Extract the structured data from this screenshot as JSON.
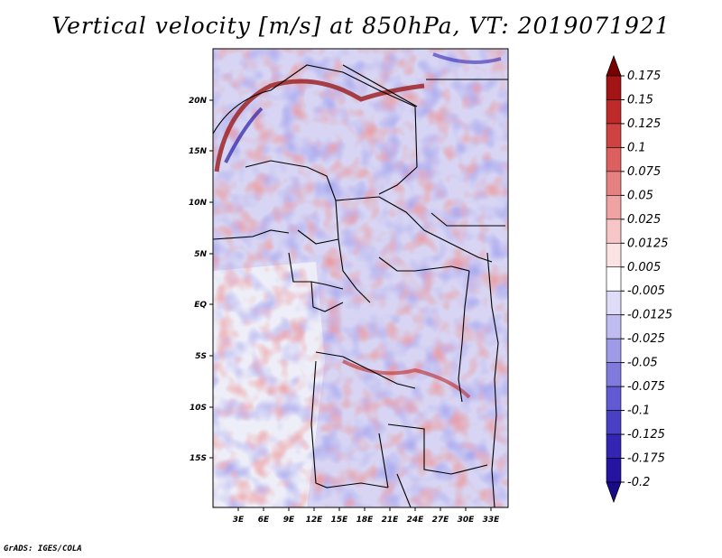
{
  "title": "Vertical velocity [m/s] at 850hPa, VT: 2019071921",
  "footer": "GrADS: IGES/COLA",
  "map": {
    "lat_labels": [
      "20N",
      "15N",
      "10N",
      "5N",
      "EQ",
      "5S",
      "10S",
      "15S"
    ],
    "lon_labels": [
      "3E",
      "6E",
      "9E",
      "12E",
      "15E",
      "18E",
      "21E",
      "24E",
      "27E",
      "30E",
      "33E"
    ]
  },
  "colorbar": {
    "labels": [
      "0.175",
      "0.15",
      "0.125",
      "0.1",
      "0.075",
      "0.05",
      "0.025",
      "0.0125",
      "0.005",
      "-0.005",
      "-0.0125",
      "-0.025",
      "-0.05",
      "-0.075",
      "-0.1",
      "-0.125",
      "-0.175",
      "-0.2"
    ],
    "colors": [
      "#7a0000",
      "#a31414",
      "#be2a2a",
      "#cf4242",
      "#dd6060",
      "#e68181",
      "#efa3a3",
      "#f6c5c5",
      "#fbe3e3",
      "#ffffff",
      "#dedcf7",
      "#bfbcf0",
      "#9f9be7",
      "#807add",
      "#615ad2",
      "#4a40c4",
      "#3326b3",
      "#2414a0",
      "#190c8a"
    ]
  }
}
